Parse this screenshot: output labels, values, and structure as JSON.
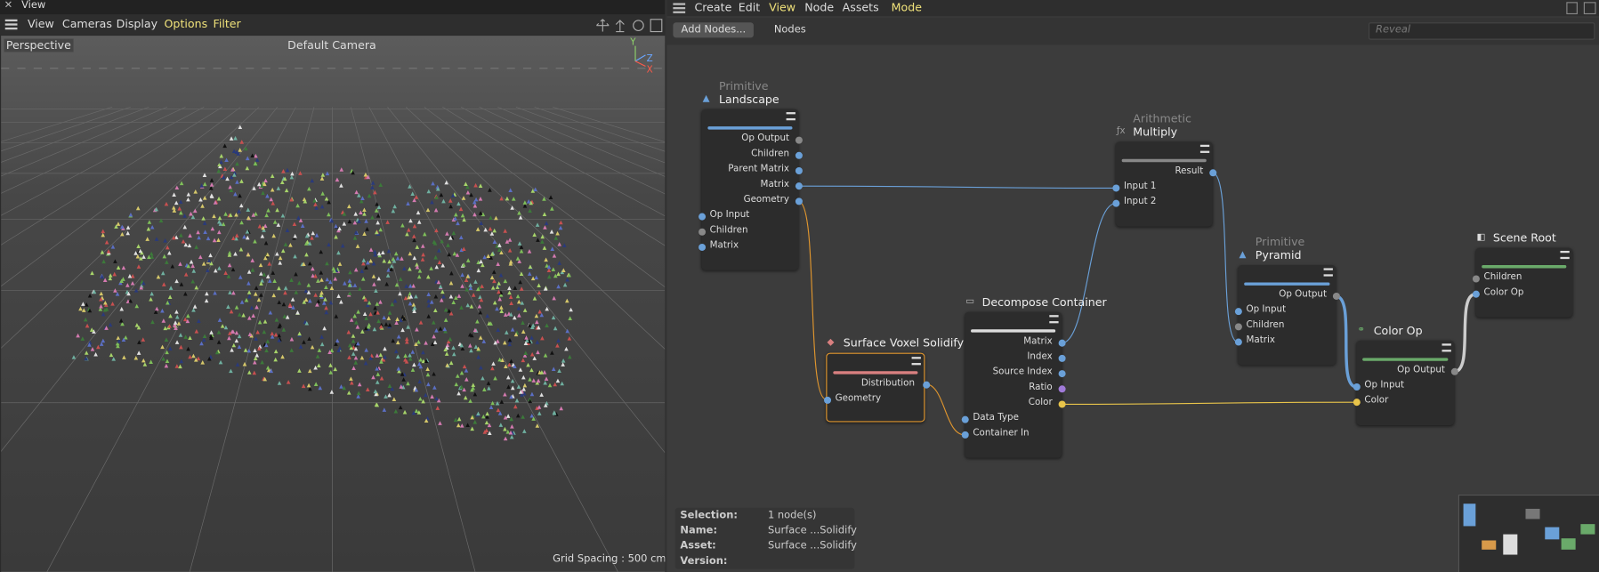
{
  "viewport": {
    "title": "View",
    "menu": [
      "View",
      "Cameras",
      "Display",
      "Options",
      "Filter"
    ],
    "camera_mode": "Perspective",
    "camera": "Default Camera",
    "axes": [
      "Y",
      "Z",
      "X"
    ],
    "grid_spacing": "Grid Spacing : 500 cm"
  },
  "node_editor": {
    "menu": [
      "Create",
      "Edit",
      "View",
      "Node",
      "Assets",
      "Mode"
    ],
    "add_nodes": "Add Nodes...",
    "tab": "Nodes",
    "search_placeholder": "Reveal",
    "nodes": [
      {
        "category": "Primitive",
        "title": "Landscape",
        "outputs": [
          "Op Output",
          "Children",
          "Parent Matrix",
          "Matrix",
          "Geometry"
        ],
        "inputs": [
          "Op Input",
          "Children",
          "Matrix"
        ]
      },
      {
        "category": "Arithmetic",
        "title": "Multiply",
        "outputs": [
          "Result"
        ],
        "inputs": [
          "Input 1",
          "Input 2"
        ]
      },
      {
        "category": "Primitive",
        "title": "Pyramid",
        "outputs": [
          "Op Output"
        ],
        "inputs": [
          "Op Input",
          "Children",
          "Matrix"
        ]
      },
      {
        "title": "Scene Root",
        "inputs": [
          "Children",
          "Color Op"
        ]
      },
      {
        "title": "Color Op",
        "outputs": [
          "Op Output"
        ],
        "inputs": [
          "Op Input",
          "Color"
        ]
      },
      {
        "title": "Decompose Container",
        "outputs": [
          "Matrix",
          "Index",
          "Source Index",
          "Ratio",
          "Color"
        ],
        "inputs": [
          "Data Type",
          "Container In"
        ]
      },
      {
        "title": "Surface Voxel Solidify",
        "outputs": [
          "Distribution"
        ],
        "inputs": [
          "Geometry"
        ],
        "selected": true
      }
    ],
    "info": [
      {
        "label": "Selection:",
        "value": "1 node(s)"
      },
      {
        "label": "Name:",
        "value": "Surface ...Solidify"
      },
      {
        "label": "Asset:",
        "value": "Surface ...Solidify"
      },
      {
        "label": "Version:"
      }
    ]
  }
}
